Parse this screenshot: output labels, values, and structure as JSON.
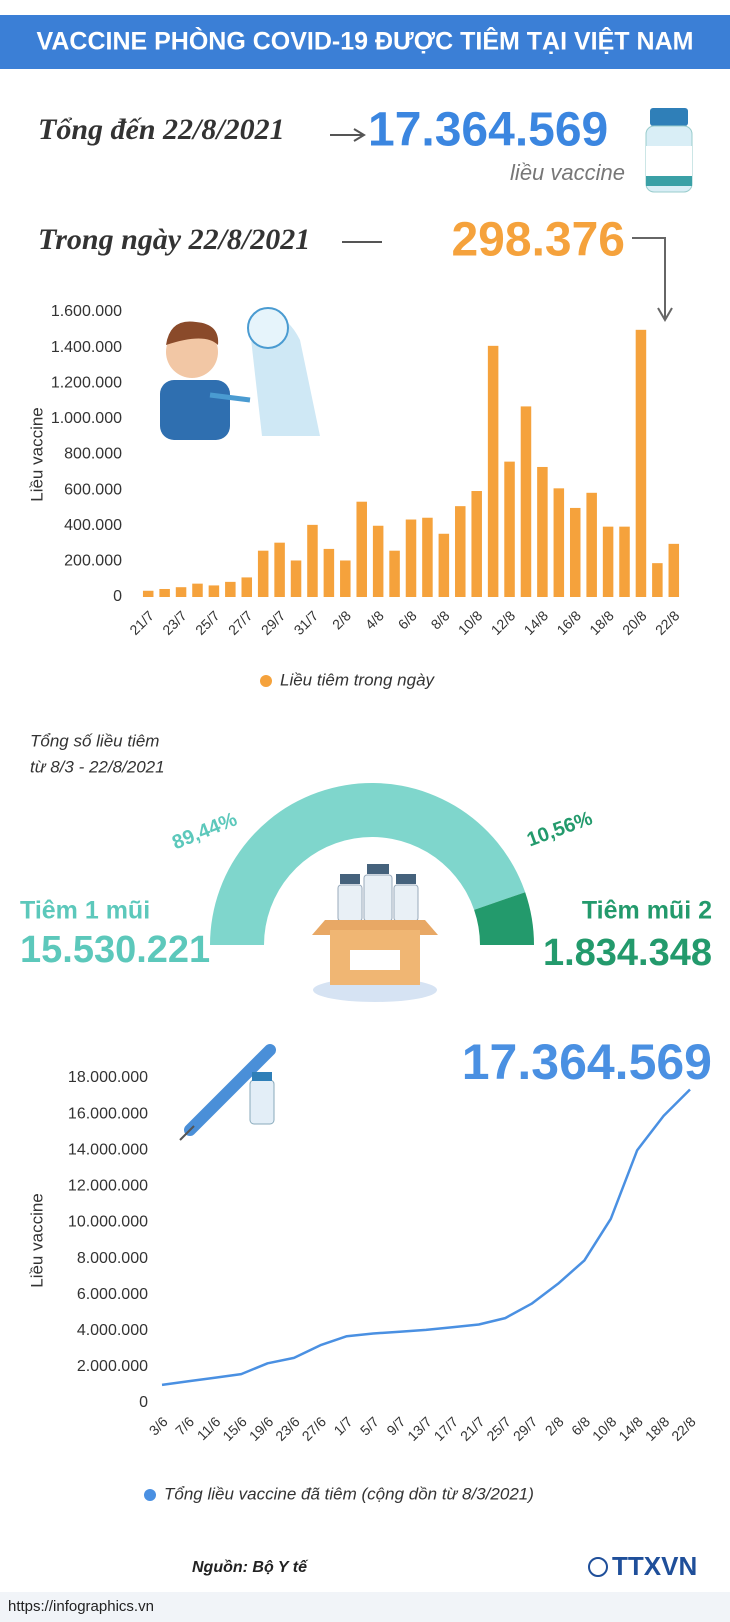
{
  "title": "VACCINE PHÒNG COVID-19 ĐƯỢC TIÊM TẠI VIỆT NAM",
  "total": {
    "label": "Tổng đến 22/8/2021",
    "value": "17.364.569",
    "unit": "liều vaccine"
  },
  "daily": {
    "label": "Trong ngày 22/8/2021",
    "value": "298.376"
  },
  "chart_data": [
    {
      "type": "bar",
      "y_label": "Liều vaccine",
      "categories": [
        "21/7",
        null,
        "23/7",
        null,
        "25/7",
        null,
        "27/7",
        null,
        "29/7",
        null,
        "31/7",
        null,
        "2/8",
        null,
        "4/8",
        null,
        "6/8",
        null,
        "8/8",
        null,
        "10/8",
        null,
        "12/8",
        null,
        "14/8",
        null,
        "16/8",
        null,
        "18/8",
        null,
        "20/8",
        null,
        "22/8"
      ],
      "series": [
        {
          "name": "Liều tiêm trong ngày",
          "color": "#f5a23c",
          "values": [
            35000,
            45000,
            55000,
            75000,
            65000,
            85000,
            110000,
            260000,
            305000,
            205000,
            405000,
            270000,
            205000,
            535000,
            400000,
            260000,
            435000,
            445000,
            355000,
            510000,
            595000,
            1410000,
            760000,
            1070000,
            730000,
            610000,
            500000,
            585000,
            395000,
            395000,
            1500000,
            190000,
            298376
          ]
        }
      ],
      "ylim": [
        0,
        1600000
      ],
      "yticks": [
        0,
        {
          "value": 200000,
          "label": "200.000"
        },
        {
          "value": 400000,
          "label": "400.000"
        },
        {
          "value": 600000,
          "label": "600.000"
        },
        {
          "value": 800000,
          "label": "800.000"
        },
        {
          "value": 1000000,
          "label": "1.000.000"
        },
        {
          "value": 1200000,
          "label": "1.200.000"
        },
        {
          "value": 1400000,
          "label": "1.400.000"
        },
        {
          "value": 1600000,
          "label": "1.600.000"
        }
      ],
      "grid": false
    },
    {
      "type": "pie",
      "title": [
        "Tổng số liều tiêm",
        "từ 8/3 - 22/8/2021"
      ],
      "categories": [
        "Tiêm 1 mũi",
        "Tiêm mũi 2"
      ],
      "values": [
        89.44,
        10.56
      ],
      "value_labels": [
        "89,44%",
        "10,56%"
      ],
      "totals": [
        "15.530.221",
        "1.834.348"
      ],
      "colors": [
        "#7fd6cc",
        "#239a6c"
      ]
    },
    {
      "type": "line",
      "y_label": "Liều vaccine",
      "annotation": "17.364.569",
      "categories": [
        "3/6",
        "7/6",
        "11/6",
        "15/6",
        "19/6",
        "23/6",
        "27/6",
        "1/7",
        "5/7",
        "9/7",
        "13/7",
        "17/7",
        "21/7",
        "25/7",
        "29/7",
        "2/8",
        "6/8",
        "10/8",
        "14/8",
        "18/8",
        "22/8"
      ],
      "series": [
        {
          "name": "Tổng liều vaccine đã tiêm (cộng dồn từ 8/3/2021)",
          "color": "#4a90e2",
          "values": [
            1000000,
            1200000,
            1400000,
            1600000,
            2200000,
            2500000,
            3200000,
            3700000,
            3850000,
            3950000,
            4050000,
            4200000,
            4350000,
            4700000,
            5500000,
            6600000,
            7900000,
            10200000,
            14000000,
            15900000,
            17364569
          ]
        }
      ],
      "ylim": [
        0,
        18000000
      ],
      "yticks": [
        0,
        {
          "value": 2000000,
          "label": "2.000.000"
        },
        {
          "value": 4000000,
          "label": "4.000.000"
        },
        {
          "value": 6000000,
          "label": "6.000.000"
        },
        {
          "value": 8000000,
          "label": "8.000.000"
        },
        {
          "value": 10000000,
          "label": "10.000.000"
        },
        {
          "value": 12000000,
          "label": "12.000.000"
        },
        {
          "value": 14000000,
          "label": "14.000.000"
        },
        {
          "value": 16000000,
          "label": "16.000.000"
        },
        {
          "value": 18000000,
          "label": "18.000.000"
        }
      ],
      "grid": false
    }
  ],
  "source": "Nguồn: Bộ Y tế",
  "url": "https://infographics.vn",
  "logo": "TTXVN"
}
